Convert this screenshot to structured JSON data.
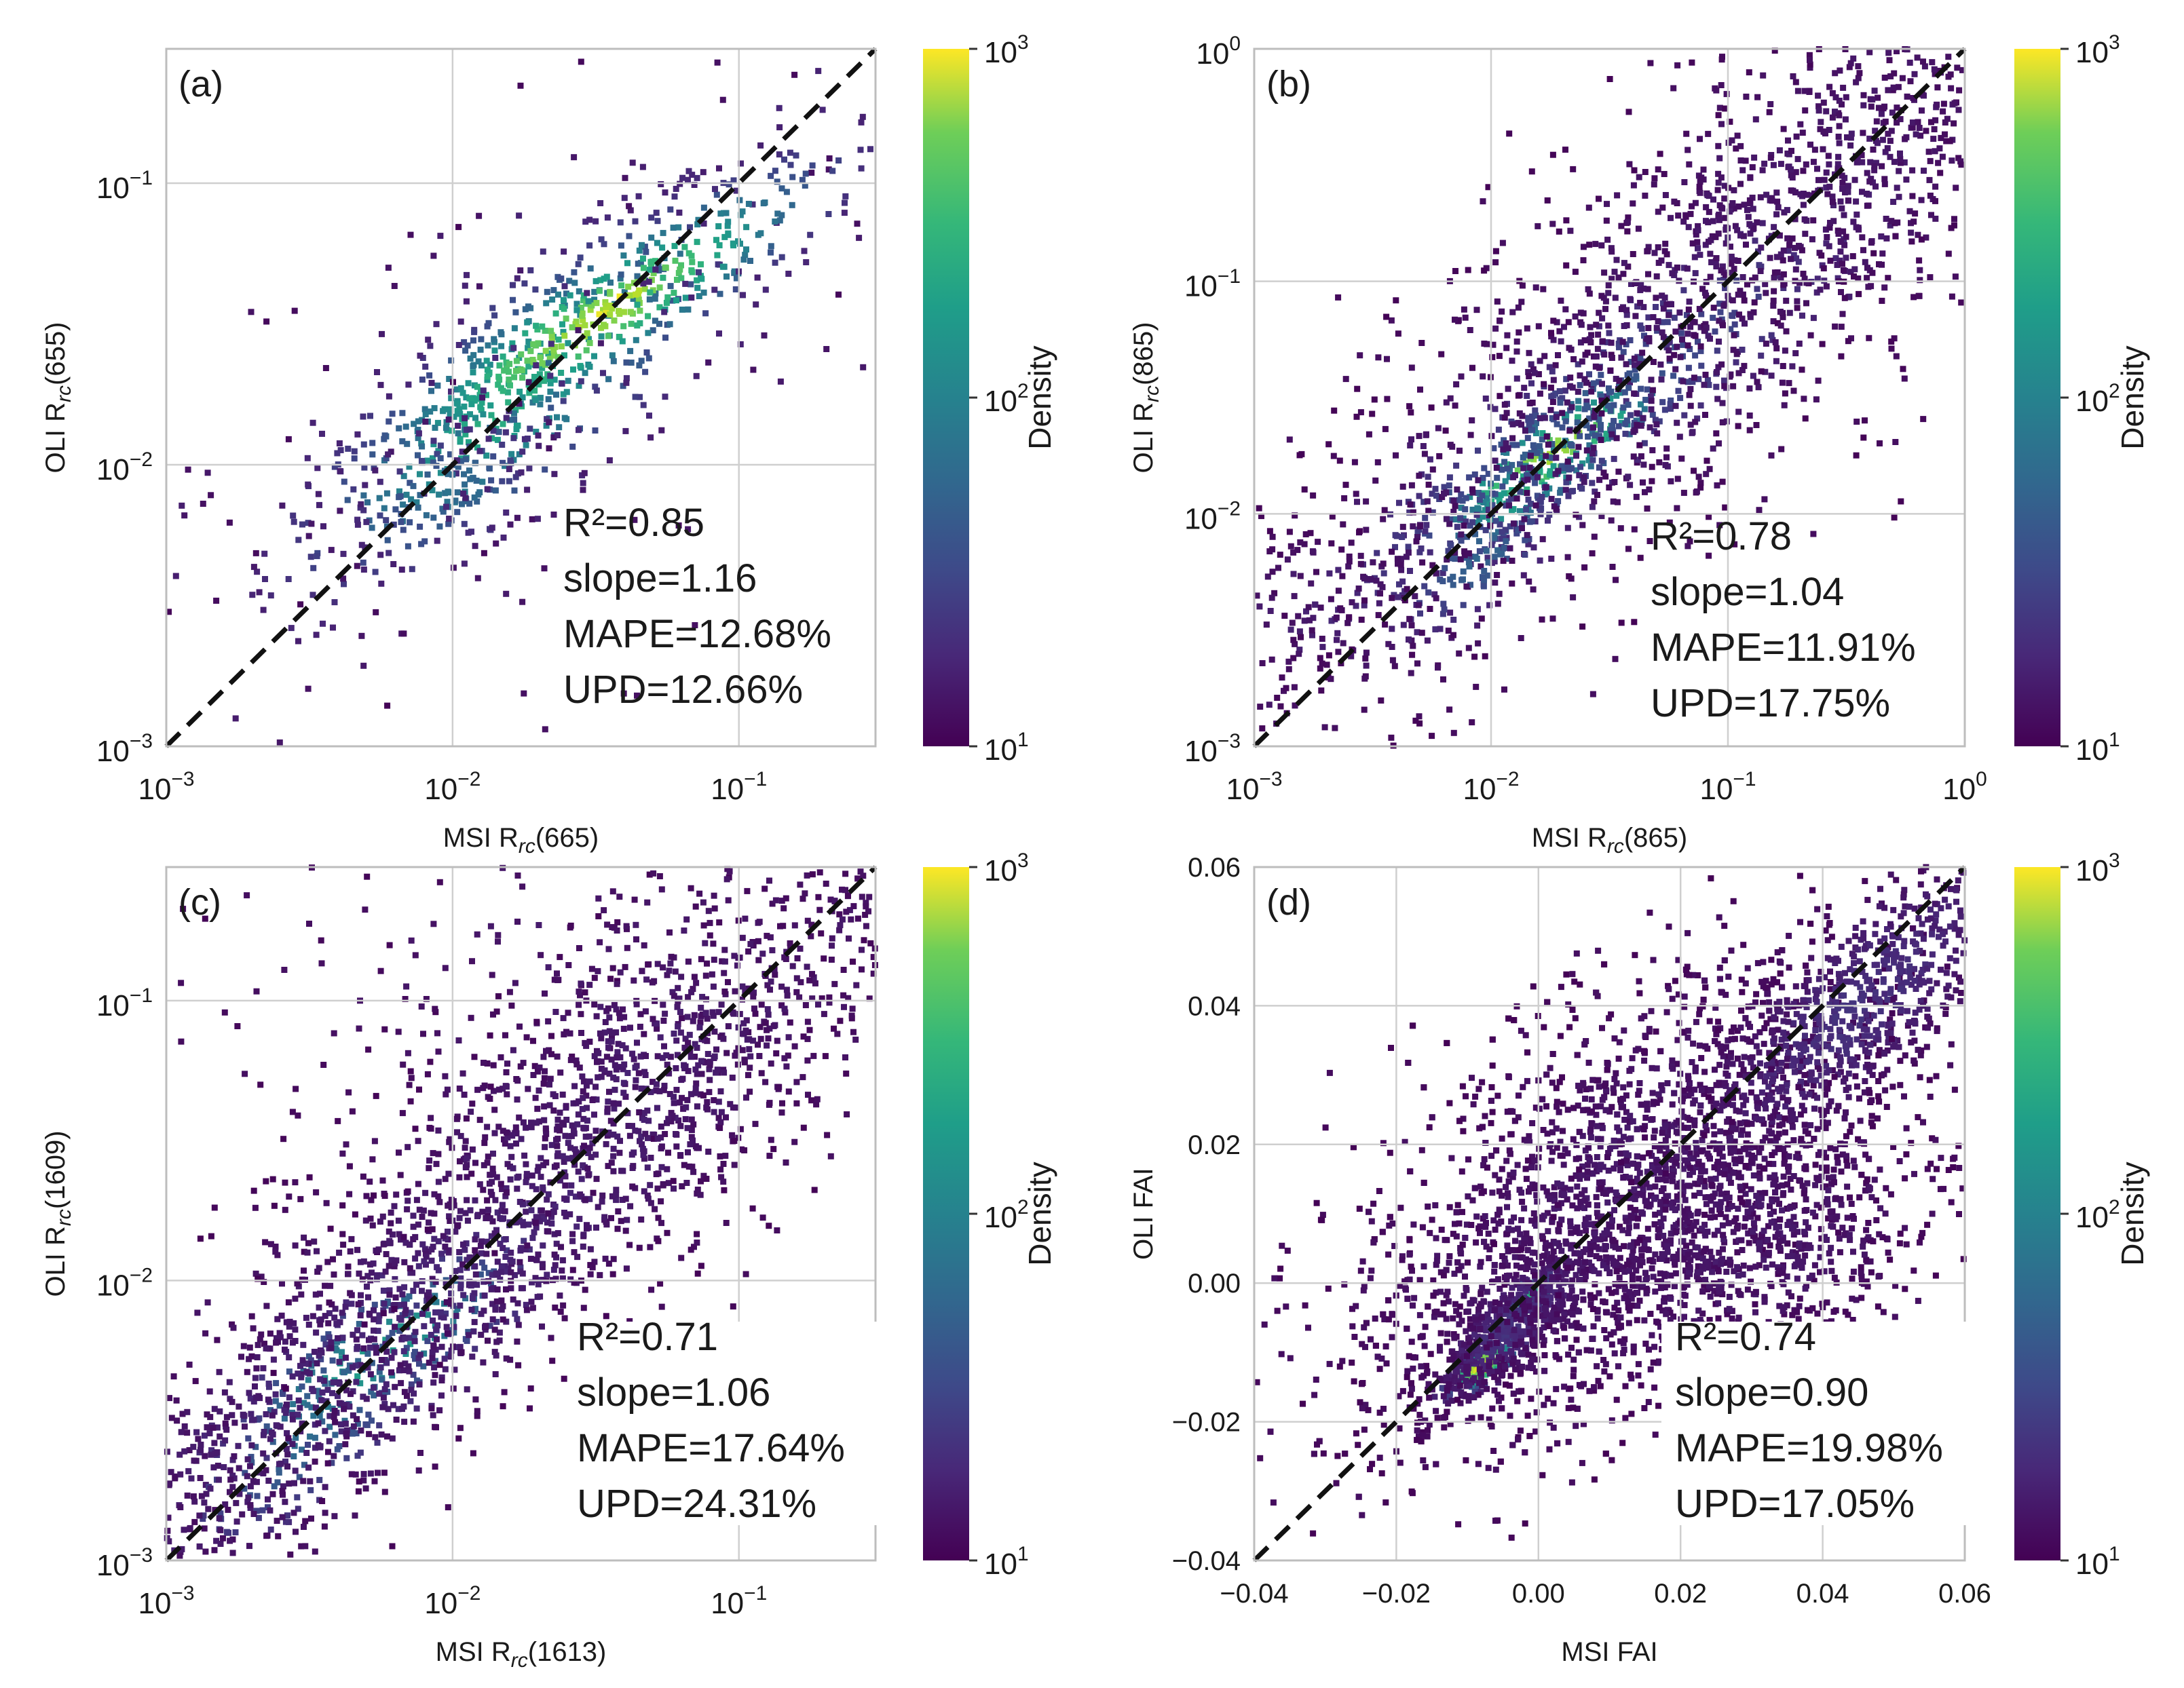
{
  "chart_data": [
    {
      "type": "heatmap",
      "panel_label": "(a)",
      "scale": "log",
      "xlabel_main": "MSI R",
      "xlabel_sub": "rc",
      "xlabel_tail": "(665)",
      "ylabel_main": "OLI R",
      "ylabel_sub": "rc",
      "ylabel_tail": "(655)",
      "xlim": [
        0.001,
        0.3
      ],
      "ylim": [
        0.001,
        0.3
      ],
      "xticks": [
        {
          "value": 0.001,
          "base": "10",
          "exp": "−3"
        },
        {
          "value": 0.01,
          "base": "10",
          "exp": "−2"
        },
        {
          "value": 0.1,
          "base": "10",
          "exp": "−1"
        }
      ],
      "yticks": [
        {
          "value": 0.001,
          "base": "10",
          "exp": "−3"
        },
        {
          "value": 0.01,
          "base": "10",
          "exp": "−2"
        },
        {
          "value": 0.1,
          "base": "10",
          "exp": "−1"
        }
      ],
      "identity_line": true,
      "stats": {
        "r2": "R²=0.85",
        "slope": "slope=1.16",
        "mape": "MAPE=12.68%",
        "upd": "UPD=12.66%"
      },
      "colorbar": {
        "label": "Density",
        "ticks": [
          {
            "value": 10,
            "base": "10",
            "exp": "1"
          },
          {
            "value": 100,
            "base": "10",
            "exp": "2"
          },
          {
            "value": 1000,
            "base": "10",
            "exp": "3"
          }
        ]
      },
      "clusters": [
        {
          "x": 0.016,
          "y": 0.017,
          "sx": 0.42,
          "sy": 0.38,
          "rho": 0.8,
          "n": 320,
          "peak": 0.6
        },
        {
          "x": 0.032,
          "y": 0.033,
          "sx": 0.45,
          "sy": 0.3,
          "rho": 0.9,
          "n": 420,
          "peak": 0.85
        },
        {
          "x": 0.036,
          "y": 0.037,
          "sx": 0.18,
          "sy": 0.12,
          "rho": 0.9,
          "n": 30,
          "peak": 1.0
        },
        {
          "x": 0.018,
          "y": 0.018,
          "sx": 0.12,
          "sy": 0.1,
          "rho": 0.6,
          "n": 14,
          "peak": 0.55
        },
        {
          "x": 0.0095,
          "y": 0.0082,
          "sx": 0.18,
          "sy": 0.14,
          "rho": 0.5,
          "n": 120,
          "peak": 0.35
        },
        {
          "x": 0.025,
          "y": 0.026,
          "sx": 1.2,
          "sy": 1.0,
          "rho": 0.85,
          "n": 220,
          "peak": 0.1
        }
      ]
    },
    {
      "type": "heatmap",
      "panel_label": "(b)",
      "scale": "log",
      "xlabel_main": "MSI R",
      "xlabel_sub": "rc",
      "xlabel_tail": "(865)",
      "ylabel_main": "OLI R",
      "ylabel_sub": "rc",
      "ylabel_tail": "(865)",
      "xlim": [
        0.001,
        1
      ],
      "ylim": [
        0.001,
        1
      ],
      "xticks": [
        {
          "value": 0.001,
          "base": "10",
          "exp": "−3"
        },
        {
          "value": 0.01,
          "base": "10",
          "exp": "−2"
        },
        {
          "value": 0.1,
          "base": "10",
          "exp": "−1"
        },
        {
          "value": 1,
          "base": "10",
          "exp": "0"
        }
      ],
      "yticks": [
        {
          "value": 0.001,
          "base": "10",
          "exp": "−3"
        },
        {
          "value": 0.01,
          "base": "10",
          "exp": "−2"
        },
        {
          "value": 0.1,
          "base": "10",
          "exp": "−1"
        },
        {
          "value": 1,
          "base": "10",
          "exp": "0"
        }
      ],
      "identity_line": true,
      "stats": {
        "r2": "R²=0.78",
        "slope": "slope=1.04",
        "mape": "MAPE=11.91%",
        "upd": "UPD=17.75%"
      },
      "colorbar": {
        "label": "Density",
        "ticks": [
          {
            "value": 10,
            "base": "10",
            "exp": "1"
          },
          {
            "value": 100,
            "base": "10",
            "exp": "2"
          },
          {
            "value": 1000,
            "base": "10",
            "exp": "3"
          }
        ]
      },
      "clusters": [
        {
          "x": 0.018,
          "y": 0.018,
          "sx": 0.3,
          "sy": 0.22,
          "rho": 0.85,
          "n": 160,
          "peak": 0.85
        },
        {
          "x": 0.014,
          "y": 0.013,
          "sx": 0.25,
          "sy": 0.2,
          "rho": 0.85,
          "n": 120,
          "peak": 0.6
        },
        {
          "x": 0.025,
          "y": 0.025,
          "sx": 0.7,
          "sy": 0.55,
          "rho": 0.9,
          "n": 500,
          "peak": 0.25
        },
        {
          "x": 0.009,
          "y": 0.0065,
          "sx": 0.22,
          "sy": 0.2,
          "rho": 0.7,
          "n": 110,
          "peak": 0.3
        },
        {
          "x": 0.08,
          "y": 0.09,
          "sx": 1.3,
          "sy": 1.2,
          "rho": 0.9,
          "n": 1400,
          "peak": 0.04
        },
        {
          "x": 0.2,
          "y": 0.25,
          "sx": 0.7,
          "sy": 0.6,
          "rho": 0.85,
          "n": 500,
          "peak": 0.04
        }
      ]
    },
    {
      "type": "heatmap",
      "panel_label": "(c)",
      "scale": "log",
      "xlabel_main": "MSI R",
      "xlabel_sub": "rc",
      "xlabel_tail": "(1613)",
      "ylabel_main": "OLI R",
      "ylabel_sub": "rc",
      "ylabel_tail": "(1609)",
      "xlim": [
        0.001,
        0.3
      ],
      "ylim": [
        0.001,
        0.3
      ],
      "xticks": [
        {
          "value": 0.001,
          "base": "10",
          "exp": "−3"
        },
        {
          "value": 0.01,
          "base": "10",
          "exp": "−2"
        },
        {
          "value": 0.1,
          "base": "10",
          "exp": "−1"
        }
      ],
      "yticks": [
        {
          "value": 0.001,
          "base": "10",
          "exp": "−3"
        },
        {
          "value": 0.01,
          "base": "10",
          "exp": "−2"
        },
        {
          "value": 0.1,
          "base": "10",
          "exp": "−1"
        }
      ],
      "identity_line": true,
      "stats": {
        "r2": "R²=0.71",
        "slope": "slope=1.06",
        "mape": "MAPE=17.64%",
        "upd": "UPD=24.31%"
      },
      "colorbar": {
        "label": "Density",
        "ticks": [
          {
            "value": 10,
            "base": "10",
            "exp": "1"
          },
          {
            "value": 100,
            "base": "10",
            "exp": "2"
          },
          {
            "value": 1000,
            "base": "10",
            "exp": "3"
          }
        ]
      },
      "clusters": [
        {
          "x": 0.0055,
          "y": 0.0055,
          "sx": 0.3,
          "sy": 0.22,
          "rho": 0.8,
          "n": 160,
          "peak": 0.55
        },
        {
          "x": 0.0035,
          "y": 0.0033,
          "sx": 0.3,
          "sy": 0.3,
          "rho": 0.8,
          "n": 180,
          "peak": 0.35
        },
        {
          "x": 0.0085,
          "y": 0.0085,
          "sx": 0.8,
          "sy": 0.7,
          "rho": 0.92,
          "n": 1200,
          "peak": 0.08
        },
        {
          "x": 0.02,
          "y": 0.025,
          "sx": 1.0,
          "sy": 0.9,
          "rho": 0.9,
          "n": 900,
          "peak": 0.05
        },
        {
          "x": 0.03,
          "y": 0.12,
          "sx": 0.6,
          "sy": 0.5,
          "rho": 0.3,
          "n": 260,
          "peak": 0.04
        },
        {
          "x": 0.05,
          "y": 0.055,
          "sx": 0.5,
          "sy": 0.4,
          "rho": 0.8,
          "n": 300,
          "peak": 0.06
        }
      ]
    },
    {
      "type": "heatmap",
      "panel_label": "(d)",
      "scale": "linear",
      "xlabel_main": "MSI FAI",
      "xlabel_sub": "",
      "xlabel_tail": "",
      "ylabel_main": "OLI FAI",
      "ylabel_sub": "",
      "ylabel_tail": "",
      "xlim": [
        -0.04,
        0.06
      ],
      "ylim": [
        -0.04,
        0.06
      ],
      "xticks": [
        {
          "value": -0.04,
          "label": "−0.04"
        },
        {
          "value": -0.02,
          "label": "−0.02"
        },
        {
          "value": 0.0,
          "label": "0.00"
        },
        {
          "value": 0.02,
          "label": "0.02"
        },
        {
          "value": 0.04,
          "label": "0.04"
        },
        {
          "value": 0.06,
          "label": "0.06"
        }
      ],
      "yticks": [
        {
          "value": -0.04,
          "label": "−0.04"
        },
        {
          "value": -0.02,
          "label": "−0.02"
        },
        {
          "value": 0.0,
          "label": "0.00"
        },
        {
          "value": 0.02,
          "label": "0.02"
        },
        {
          "value": 0.04,
          "label": "0.04"
        },
        {
          "value": 0.06,
          "label": "0.06"
        }
      ],
      "identity_line": true,
      "stats": {
        "r2": "R²=0.74",
        "slope": "slope=0.90",
        "mape": "MAPE=19.98%",
        "upd": "UPD=17.05%"
      },
      "colorbar": {
        "label": "Density",
        "ticks": [
          {
            "value": 10,
            "base": "10",
            "exp": "1"
          },
          {
            "value": 100,
            "base": "10",
            "exp": "2"
          },
          {
            "value": 1000,
            "base": "10",
            "exp": "3"
          }
        ]
      },
      "clusters": [
        {
          "x": -0.008,
          "y": -0.012,
          "sx": 0.0028,
          "sy": 0.0022,
          "rho": 0.7,
          "n": 110,
          "peak": 0.95
        },
        {
          "x": -0.001,
          "y": -0.002,
          "sx": 0.0018,
          "sy": 0.002,
          "rho": 0.5,
          "n": 70,
          "peak": 0.65
        },
        {
          "x": -0.004,
          "y": -0.006,
          "sx": 0.006,
          "sy": 0.006,
          "rho": 0.8,
          "n": 500,
          "peak": 0.12
        },
        {
          "x": 0.012,
          "y": 0.012,
          "sx": 0.02,
          "sy": 0.018,
          "rho": 0.6,
          "n": 2600,
          "peak": 0.04
        },
        {
          "x": 0.045,
          "y": 0.04,
          "sx": 0.012,
          "sy": 0.012,
          "rho": 0.8,
          "n": 700,
          "peak": 0.12
        },
        {
          "x": 0.03,
          "y": 0.005,
          "sx": 0.015,
          "sy": 0.01,
          "rho": 0.4,
          "n": 600,
          "peak": 0.04
        }
      ]
    }
  ]
}
